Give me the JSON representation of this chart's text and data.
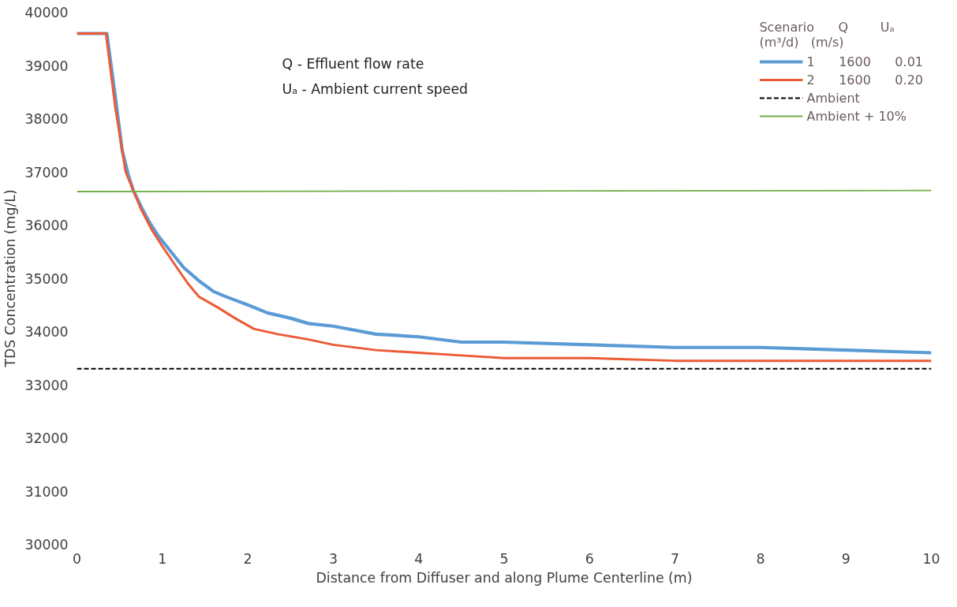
{
  "chart_data": {
    "type": "line",
    "xlabel": "Distance from Diffuser and along Plume Centerline (m)",
    "ylabel": "TDS Concentration (mg/L)",
    "legend_title": "Scenario      Q        Uₐ\n(m³/d)   (m/s)",
    "annotations": [
      "Q - Effluent flow rate",
      "Uₐ - Ambient current speed"
    ],
    "xlim": [
      0,
      10
    ],
    "xticks": [
      0,
      1,
      2,
      3,
      4,
      5,
      6,
      7,
      8,
      9,
      10
    ],
    "ylim": [
      30000,
      40000
    ],
    "yticks": [
      30000,
      31000,
      32000,
      33000,
      34000,
      35000,
      36000,
      37000,
      38000,
      39000,
      40000
    ],
    "grid": false,
    "legend": "top right",
    "line_style": "solid",
    "marker": "none",
    "series": [
      {
        "name": "1      1600      0.01",
        "color": "#5b9bd5",
        "x": [
          0,
          0.35,
          0.45,
          0.53,
          0.6,
          0.66,
          0.75,
          0.85,
          0.95,
          1.1,
          1.25,
          1.43,
          1.6,
          1.75,
          2.0,
          2.23,
          2.5,
          2.71,
          3.0,
          3.5,
          4.0,
          4.5,
          5.0,
          6.0,
          7.0,
          8.0,
          9.0,
          10.0
        ],
        "values": [
          39600,
          39600,
          38400,
          37400,
          36950,
          36650,
          36350,
          36050,
          35800,
          35500,
          35200,
          34950,
          34750,
          34650,
          34500,
          34350,
          34250,
          34150,
          34100,
          33950,
          33900,
          33800,
          33800,
          33750,
          33700,
          33700,
          33650,
          33600
        ]
      },
      {
        "name": "2      1600      0.20",
        "color": "#ec5a36",
        "x": [
          0,
          0.34,
          0.45,
          0.57,
          0.66,
          0.75,
          0.88,
          1.0,
          1.17,
          1.3,
          1.43,
          1.65,
          1.85,
          2.07,
          2.35,
          2.71,
          3.0,
          3.5,
          4.0,
          4.5,
          5.0,
          6.0,
          7.0,
          8.0,
          9.0,
          10.0
        ],
        "values": [
          39600,
          39600,
          38200,
          37000,
          36650,
          36300,
          35900,
          35600,
          35200,
          34900,
          34650,
          34450,
          34250,
          34050,
          33950,
          33850,
          33750,
          33650,
          33600,
          33550,
          33500,
          33500,
          33450,
          33450,
          33450,
          33450
        ]
      },
      {
        "name": "Ambient",
        "color": "#000000",
        "line_style": "dashed",
        "x": [
          0,
          10
        ],
        "values": [
          33300,
          33300
        ]
      },
      {
        "name": "Ambient + 10%",
        "color": "#70ad47",
        "x": [
          0,
          10
        ],
        "values": [
          36630,
          36650
        ]
      }
    ]
  }
}
